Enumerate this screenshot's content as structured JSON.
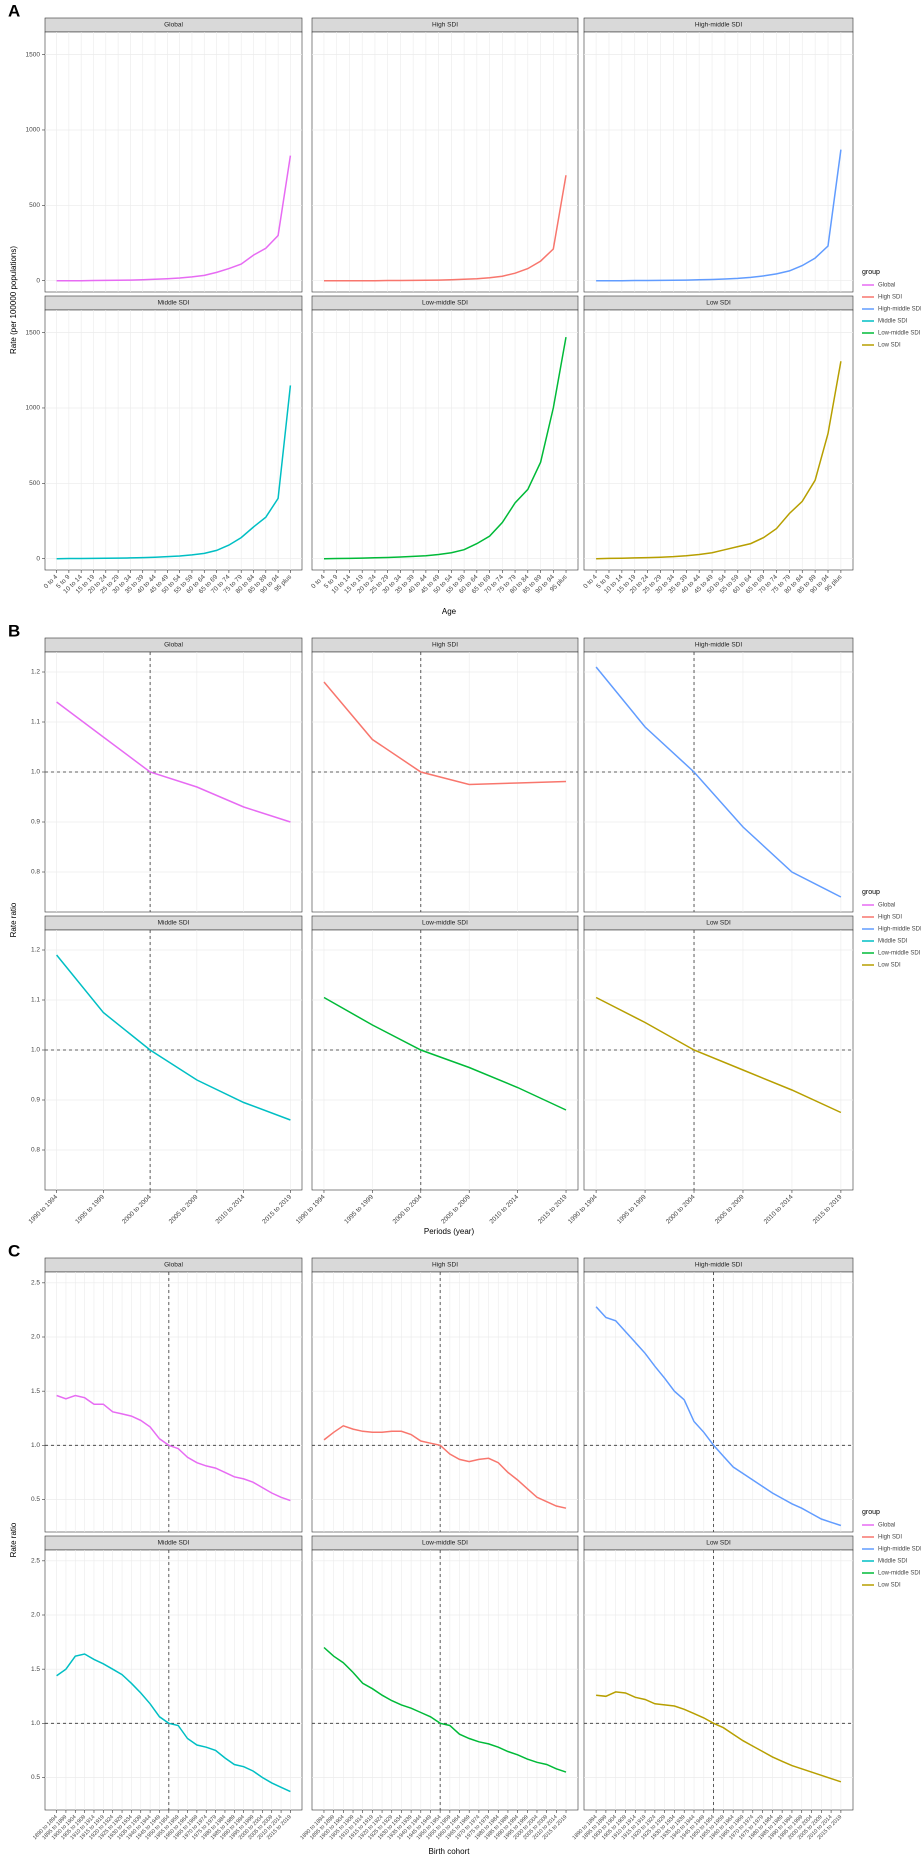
{
  "chart_data": [
    {
      "type": "line",
      "label": "A",
      "xlabel": "Age",
      "ylabel": "Rate (per 100000 populations)",
      "legend_title": "group",
      "grid": true,
      "categories": [
        "0 to 4",
        "5 to 9",
        "10 to 14",
        "15 to 19",
        "20 to 24",
        "25 to 29",
        "30 to 34",
        "35 to 39",
        "40 to 44",
        "45 to 49",
        "50 to 54",
        "55 to 59",
        "60 to 64",
        "65 to 69",
        "70 to 74",
        "75 to 79",
        "80 to 84",
        "85 to 89",
        "90 to 94",
        "95 plus"
      ],
      "ylim": [
        -75,
        1650
      ],
      "yticks": [
        0,
        500,
        1000,
        1500
      ],
      "series": [
        {
          "name": "Global",
          "color": "#e76bf3",
          "values": [
            0,
            0,
            0,
            1,
            2,
            3,
            4,
            6,
            9,
            13,
            18,
            25,
            35,
            55,
            80,
            110,
            170,
            215,
            300,
            830
          ]
        },
        {
          "name": "High SDI",
          "color": "#f8766d",
          "values": [
            0,
            0,
            0,
            0,
            0,
            1,
            1,
            2,
            3,
            4,
            6,
            9,
            13,
            20,
            30,
            50,
            80,
            130,
            210,
            700
          ]
        },
        {
          "name": "High-middle SDI",
          "color": "#619cff",
          "values": [
            0,
            0,
            0,
            1,
            1,
            2,
            3,
            4,
            6,
            8,
            11,
            15,
            22,
            32,
            45,
            65,
            100,
            150,
            230,
            870
          ]
        },
        {
          "name": "Middle SDI",
          "color": "#00bfc4",
          "values": [
            0,
            1,
            1,
            2,
            3,
            4,
            5,
            7,
            10,
            14,
            18,
            25,
            35,
            55,
            90,
            140,
            210,
            275,
            400,
            1150
          ]
        },
        {
          "name": "Low-middle SDI",
          "color": "#00ba38",
          "values": [
            0,
            1,
            2,
            4,
            6,
            8,
            11,
            15,
            20,
            28,
            40,
            60,
            100,
            150,
            240,
            370,
            460,
            640,
            1000,
            1470
          ]
        },
        {
          "name": "Low SDI",
          "color": "#b79f00",
          "values": [
            0,
            2,
            3,
            5,
            7,
            10,
            14,
            20,
            28,
            40,
            60,
            80,
            100,
            140,
            200,
            300,
            380,
            520,
            830,
            1310
          ]
        }
      ]
    },
    {
      "type": "line",
      "label": "B",
      "xlabel": "Periods (year)",
      "ylabel": "Rate ratio",
      "legend_title": "group",
      "grid": true,
      "categories": [
        "1990 to 1994",
        "1995 to 1999",
        "2000 to 2004",
        "2005 to 2009",
        "2010 to 2014",
        "2015 to 2019"
      ],
      "ylim": [
        0.72,
        1.24
      ],
      "yticks": [
        0.8,
        0.9,
        {
          "value": 1,
          "label": "1.0"
        },
        1.1,
        1.2
      ],
      "hline": 1,
      "vline": "2000 to 2004",
      "series": [
        {
          "name": "Global",
          "color": "#e76bf3",
          "values": [
            1.14,
            1.07,
            1.0,
            0.97,
            0.93,
            0.9
          ]
        },
        {
          "name": "High SDI",
          "color": "#f8766d",
          "values": [
            1.18,
            1.065,
            1.0,
            0.975,
            0.978,
            0.981
          ]
        },
        {
          "name": "High-middle SDI",
          "color": "#619cff",
          "values": [
            1.21,
            1.09,
            1.0,
            0.89,
            0.8,
            0.75
          ]
        },
        {
          "name": "Middle SDI",
          "color": "#00bfc4",
          "values": [
            1.19,
            1.075,
            1.0,
            0.94,
            0.895,
            0.86
          ]
        },
        {
          "name": "Low-middle SDI",
          "color": "#00ba38",
          "values": [
            1.105,
            1.05,
            1.0,
            0.965,
            0.925,
            0.88
          ]
        },
        {
          "name": "Low SDI",
          "color": "#b79f00",
          "values": [
            1.105,
            1.055,
            1.0,
            0.96,
            0.92,
            0.875
          ]
        }
      ]
    },
    {
      "type": "line",
      "label": "C",
      "xlabel": "Birth cohort",
      "ylabel": "Rate ratio",
      "legend_title": "group",
      "grid": true,
      "categories": [
        "1890 to 1894",
        "1895 to 1899",
        "1900 to 1904",
        "1905 to 1909",
        "1910 to 1914",
        "1915 to 1919",
        "1920 to 1924",
        "1925 to 1929",
        "1930 to 1934",
        "1935 to 1939",
        "1940 to 1944",
        "1945 to 1949",
        "1950 to 1954",
        "1955 to 1959",
        "1960 to 1964",
        "1965 to 1969",
        "1970 to 1974",
        "1975 to 1979",
        "1980 to 1984",
        "1985 to 1989",
        "1990 to 1994",
        "1995 to 1999",
        "2000 to 2004",
        "2005 to 2009",
        "2010 to 2014",
        "2015 to 2019"
      ],
      "ylim": [
        0.2,
        2.6
      ],
      "yticks": [
        0.5,
        {
          "value": 1,
          "label": "1.0"
        },
        1.5,
        {
          "value": 2,
          "label": "2.0"
        },
        2.5
      ],
      "hline": 1,
      "vline": "1950 to 1954",
      "series": [
        {
          "name": "Global",
          "color": "#e76bf3",
          "values": [
            1.46,
            1.43,
            1.46,
            1.44,
            1.38,
            1.38,
            1.31,
            1.29,
            1.27,
            1.23,
            1.17,
            1.06,
            1.0,
            0.97,
            0.89,
            0.84,
            0.81,
            0.79,
            0.75,
            0.71,
            0.69,
            0.66,
            0.61,
            0.56,
            0.52,
            0.49
          ]
        },
        {
          "name": "High SDI",
          "color": "#f8766d",
          "values": [
            1.05,
            1.12,
            1.18,
            1.15,
            1.13,
            1.12,
            1.12,
            1.13,
            1.13,
            1.1,
            1.04,
            1.02,
            1.0,
            0.92,
            0.87,
            0.85,
            0.87,
            0.88,
            0.84,
            0.75,
            0.68,
            0.6,
            0.52,
            0.48,
            0.44,
            0.42
          ]
        },
        {
          "name": "High-middle SDI",
          "color": "#619cff",
          "values": [
            2.28,
            2.18,
            2.15,
            2.05,
            1.95,
            1.85,
            1.73,
            1.62,
            1.5,
            1.42,
            1.22,
            1.12,
            1.0,
            0.9,
            0.8,
            0.74,
            0.68,
            0.62,
            0.56,
            0.51,
            0.46,
            0.42,
            0.37,
            0.32,
            0.29,
            0.26
          ]
        },
        {
          "name": "Middle SDI",
          "color": "#00bfc4",
          "values": [
            1.44,
            1.5,
            1.62,
            1.64,
            1.59,
            1.55,
            1.5,
            1.45,
            1.37,
            1.28,
            1.18,
            1.06,
            1.0,
            0.98,
            0.86,
            0.8,
            0.78,
            0.75,
            0.68,
            0.62,
            0.6,
            0.56,
            0.5,
            0.45,
            0.41,
            0.37
          ]
        },
        {
          "name": "Low-middle SDI",
          "color": "#00ba38",
          "values": [
            1.7,
            1.62,
            1.56,
            1.47,
            1.37,
            1.32,
            1.26,
            1.21,
            1.17,
            1.14,
            1.1,
            1.06,
            1.0,
            0.98,
            0.9,
            0.86,
            0.83,
            0.81,
            0.78,
            0.74,
            0.71,
            0.67,
            0.64,
            0.62,
            0.58,
            0.55
          ]
        },
        {
          "name": "Low SDI",
          "color": "#b79f00",
          "values": [
            1.26,
            1.25,
            1.29,
            1.28,
            1.24,
            1.22,
            1.18,
            1.17,
            1.16,
            1.13,
            1.09,
            1.05,
            1.0,
            0.96,
            0.9,
            0.84,
            0.79,
            0.74,
            0.69,
            0.65,
            0.61,
            0.58,
            0.55,
            0.52,
            0.49,
            0.46
          ]
        }
      ]
    }
  ]
}
